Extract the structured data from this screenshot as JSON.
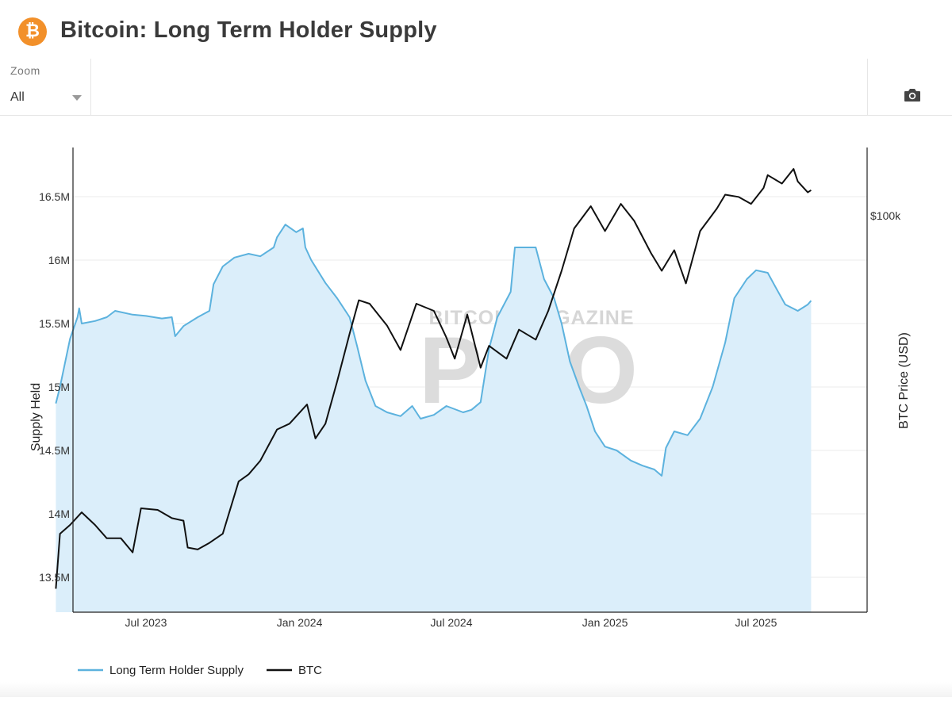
{
  "header": {
    "title": "Bitcoin: Long Term Holder Supply",
    "logo_symbol": "₿",
    "logo_color": "#f2902a"
  },
  "toolbar": {
    "zoom_label": "Zoom",
    "zoom_value": "All",
    "camera_icon": "camera-icon"
  },
  "watermark": {
    "top_text": "BITCOIN MAGAZINE",
    "main_text": "PRO"
  },
  "chart_data": {
    "type": "line",
    "x_ticks": [
      "Jul 2023",
      "Jan 2024",
      "Jul 2024",
      "Jan 2025",
      "Jul 2025"
    ],
    "y_ticks": [
      "13.5M",
      "14M",
      "14.5M",
      "15M",
      "15.5M",
      "16M",
      "16.5M"
    ],
    "y2_ticks": [
      "$100k"
    ],
    "ylabel": "Supply Held",
    "y2label": "BTC Price (USD)",
    "ylim": [
      13.26,
      16.87
    ],
    "grid": true,
    "legend_position": "bottom-left",
    "series": [
      {
        "name": "Long Term Holder Supply",
        "color": "#5cb2de",
        "fill": "#dbeefa",
        "axis": "left",
        "points": [
          [
            "2023-03-15",
            14.87
          ],
          [
            "2023-03-20",
            15.0
          ],
          [
            "2023-04-01",
            15.38
          ],
          [
            "2023-04-10",
            15.55
          ],
          [
            "2023-04-12",
            15.62
          ],
          [
            "2023-04-15",
            15.5
          ],
          [
            "2023-05-01",
            15.52
          ],
          [
            "2023-05-15",
            15.55
          ],
          [
            "2023-05-25",
            15.6
          ],
          [
            "2023-06-15",
            15.57
          ],
          [
            "2023-07-01",
            15.56
          ],
          [
            "2023-07-20",
            15.54
          ],
          [
            "2023-08-01",
            15.55
          ],
          [
            "2023-08-05",
            15.4
          ],
          [
            "2023-08-15",
            15.48
          ],
          [
            "2023-09-01",
            15.55
          ],
          [
            "2023-09-15",
            15.6
          ],
          [
            "2023-09-20",
            15.81
          ],
          [
            "2023-10-01",
            15.95
          ],
          [
            "2023-10-15",
            16.02
          ],
          [
            "2023-11-01",
            16.05
          ],
          [
            "2023-11-15",
            16.03
          ],
          [
            "2023-12-01",
            16.1
          ],
          [
            "2023-12-05",
            16.18
          ],
          [
            "2023-12-15",
            16.28
          ],
          [
            "2023-12-28",
            16.22
          ],
          [
            "2024-01-05",
            16.25
          ],
          [
            "2024-01-08",
            16.1
          ],
          [
            "2024-01-15",
            16.0
          ],
          [
            "2024-02-01",
            15.82
          ],
          [
            "2024-02-15",
            15.7
          ],
          [
            "2024-03-01",
            15.55
          ],
          [
            "2024-03-10",
            15.32
          ],
          [
            "2024-03-20",
            15.05
          ],
          [
            "2024-04-01",
            14.85
          ],
          [
            "2024-04-15",
            14.8
          ],
          [
            "2024-05-01",
            14.77
          ],
          [
            "2024-05-15",
            14.85
          ],
          [
            "2024-05-25",
            14.75
          ],
          [
            "2024-06-10",
            14.78
          ],
          [
            "2024-06-25",
            14.85
          ],
          [
            "2024-07-15",
            14.8
          ],
          [
            "2024-07-25",
            14.82
          ],
          [
            "2024-08-05",
            14.88
          ],
          [
            "2024-08-15",
            15.3
          ],
          [
            "2024-08-25",
            15.55
          ],
          [
            "2024-09-10",
            15.75
          ],
          [
            "2024-09-15",
            16.1
          ],
          [
            "2024-10-10",
            16.1
          ],
          [
            "2024-10-20",
            15.85
          ],
          [
            "2024-11-01",
            15.7
          ],
          [
            "2024-11-10",
            15.5
          ],
          [
            "2024-11-20",
            15.2
          ],
          [
            "2024-12-01",
            15.0
          ],
          [
            "2024-12-10",
            14.85
          ],
          [
            "2024-12-20",
            14.65
          ],
          [
            "2025-01-01",
            14.53
          ],
          [
            "2025-01-15",
            14.5
          ],
          [
            "2025-02-01",
            14.42
          ],
          [
            "2025-02-15",
            14.38
          ],
          [
            "2025-03-01",
            14.35
          ],
          [
            "2025-03-10",
            14.3
          ],
          [
            "2025-03-15",
            14.52
          ],
          [
            "2025-03-25",
            14.65
          ],
          [
            "2025-04-10",
            14.62
          ],
          [
            "2025-04-25",
            14.75
          ],
          [
            "2025-05-10",
            15.0
          ],
          [
            "2025-05-25",
            15.35
          ],
          [
            "2025-06-05",
            15.7
          ],
          [
            "2025-06-20",
            15.85
          ],
          [
            "2025-07-01",
            15.92
          ],
          [
            "2025-07-15",
            15.9
          ],
          [
            "2025-07-25",
            15.78
          ],
          [
            "2025-08-05",
            15.65
          ],
          [
            "2025-08-20",
            15.6
          ],
          [
            "2025-09-01",
            15.65
          ],
          [
            "2025-09-05",
            15.68
          ]
        ]
      },
      {
        "name": "BTC",
        "color": "#111111",
        "axis": "right",
        "points": [
          [
            "2023-03-15",
            22000
          ],
          [
            "2023-03-20",
            27500
          ],
          [
            "2023-04-01",
            28500
          ],
          [
            "2023-04-15",
            30000
          ],
          [
            "2023-05-01",
            28500
          ],
          [
            "2023-05-15",
            27000
          ],
          [
            "2023-06-01",
            27000
          ],
          [
            "2023-06-15",
            25500
          ],
          [
            "2023-06-25",
            30500
          ],
          [
            "2023-07-15",
            30300
          ],
          [
            "2023-08-01",
            29300
          ],
          [
            "2023-08-15",
            29000
          ],
          [
            "2023-08-20",
            26000
          ],
          [
            "2023-09-01",
            25800
          ],
          [
            "2023-09-15",
            26500
          ],
          [
            "2023-10-01",
            27500
          ],
          [
            "2023-10-20",
            34000
          ],
          [
            "2023-11-01",
            35000
          ],
          [
            "2023-11-15",
            37000
          ],
          [
            "2023-12-05",
            42000
          ],
          [
            "2023-12-20",
            43000
          ],
          [
            "2024-01-10",
            46500
          ],
          [
            "2024-01-20",
            40500
          ],
          [
            "2024-02-01",
            43000
          ],
          [
            "2024-02-15",
            51000
          ],
          [
            "2024-03-01",
            62000
          ],
          [
            "2024-03-12",
            71000
          ],
          [
            "2024-03-25",
            70000
          ],
          [
            "2024-04-15",
            64000
          ],
          [
            "2024-05-01",
            58000
          ],
          [
            "2024-05-20",
            70000
          ],
          [
            "2024-06-10",
            68000
          ],
          [
            "2024-06-25",
            61000
          ],
          [
            "2024-07-05",
            56000
          ],
          [
            "2024-07-20",
            67000
          ],
          [
            "2024-08-05",
            54000
          ],
          [
            "2024-08-15",
            59000
          ],
          [
            "2024-09-05",
            56000
          ],
          [
            "2024-09-20",
            63000
          ],
          [
            "2024-10-10",
            60500
          ],
          [
            "2024-10-25",
            68000
          ],
          [
            "2024-11-10",
            80000
          ],
          [
            "2024-11-25",
            95000
          ],
          [
            "2024-12-15",
            104000
          ],
          [
            "2025-01-01",
            94000
          ],
          [
            "2025-01-20",
            105000
          ],
          [
            "2025-02-05",
            98000
          ],
          [
            "2025-02-25",
            86000
          ],
          [
            "2025-03-10",
            80000
          ],
          [
            "2025-03-25",
            87000
          ],
          [
            "2025-04-08",
            76000
          ],
          [
            "2025-04-25",
            94000
          ],
          [
            "2025-05-15",
            103000
          ],
          [
            "2025-05-25",
            109000
          ],
          [
            "2025-06-10",
            108000
          ],
          [
            "2025-06-25",
            105000
          ],
          [
            "2025-07-10",
            112000
          ],
          [
            "2025-07-15",
            118000
          ],
          [
            "2025-08-01",
            114000
          ],
          [
            "2025-08-15",
            121000
          ],
          [
            "2025-08-20",
            115000
          ],
          [
            "2025-09-01",
            110000
          ],
          [
            "2025-09-05",
            111000
          ]
        ]
      }
    ],
    "legend": [
      {
        "label": "Long Term Holder Supply",
        "color": "#5cb2de"
      },
      {
        "label": "BTC",
        "color": "#111111"
      }
    ]
  }
}
